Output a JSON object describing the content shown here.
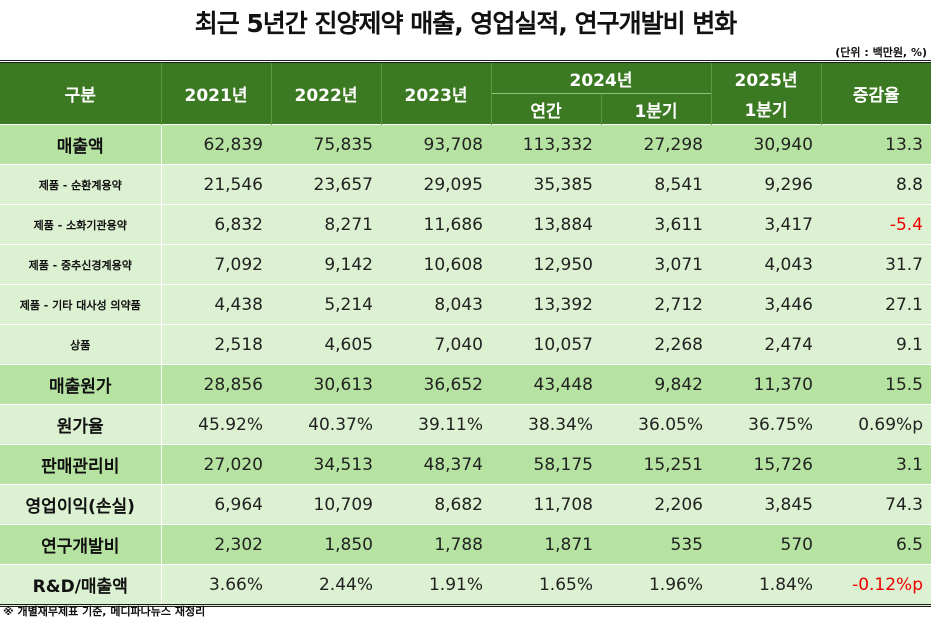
{
  "title": "최근 5년간 진양제약 매출, 영업실적, 연구개발비 변화",
  "unit": "(단위 : 백만원, %)",
  "header": {
    "category": "구분",
    "y2021": "2021년",
    "y2022": "2022년",
    "y2023": "2023년",
    "y2024": "2024년",
    "y2024_annual": "연간",
    "y2024_q1": "1분기",
    "y2025": "2025년",
    "y2025_q1": "1분기",
    "change": "증감율"
  },
  "rows": [
    {
      "label": "매출액",
      "type": "main",
      "values": [
        "62,839",
        "75,835",
        "93,708",
        "113,332",
        "27,298",
        "30,940",
        "13.3"
      ]
    },
    {
      "label": "제품 - 순환계용약",
      "type": "sub",
      "values": [
        "21,546",
        "23,657",
        "29,095",
        "35,385",
        "8,541",
        "9,296",
        "8.8"
      ]
    },
    {
      "label": "제품 - 소화기관용약",
      "type": "sub",
      "values": [
        "6,832",
        "8,271",
        "11,686",
        "13,884",
        "3,611",
        "3,417",
        "-5.4"
      ]
    },
    {
      "label": "제품 - 중추신경계용약",
      "type": "sub",
      "values": [
        "7,092",
        "9,142",
        "10,608",
        "12,950",
        "3,071",
        "4,043",
        "31.7"
      ]
    },
    {
      "label": "제품 - 기타 대사성 의약품",
      "type": "sub",
      "values": [
        "4,438",
        "5,214",
        "8,043",
        "13,392",
        "2,712",
        "3,446",
        "27.1"
      ]
    },
    {
      "label": "상품",
      "type": "sub",
      "values": [
        "2,518",
        "4,605",
        "7,040",
        "10,057",
        "2,268",
        "2,474",
        "9.1"
      ]
    },
    {
      "label": "매출원가",
      "type": "main",
      "values": [
        "28,856",
        "30,613",
        "36,652",
        "43,448",
        "9,842",
        "11,370",
        "15.5"
      ]
    },
    {
      "label": "원가율",
      "type": "light",
      "values": [
        "45.92%",
        "40.37%",
        "39.11%",
        "38.34%",
        "36.05%",
        "36.75%",
        "0.69%p"
      ]
    },
    {
      "label": "판매관리비",
      "type": "main",
      "values": [
        "27,020",
        "34,513",
        "48,374",
        "58,175",
        "15,251",
        "15,726",
        "3.1"
      ]
    },
    {
      "label": "영업이익(손실)",
      "type": "light",
      "values": [
        "6,964",
        "10,709",
        "8,682",
        "11,708",
        "2,206",
        "3,845",
        "74.3"
      ]
    },
    {
      "label": "연구개발비",
      "type": "main",
      "values": [
        "2,302",
        "1,850",
        "1,788",
        "1,871",
        "535",
        "570",
        "6.5"
      ]
    },
    {
      "label": "R&D/매출액",
      "type": "light",
      "values": [
        "3.66%",
        "2.44%",
        "1.91%",
        "1.65%",
        "1.96%",
        "1.84%",
        "-0.12%p"
      ]
    }
  ],
  "colors": {
    "header": "#3b7a22",
    "main_row": "#b6e3a2",
    "sub_row": "#dcf1d2",
    "negative": "#e00000"
  },
  "footnote": "※ 개별재무제표 기준, 메디파나뉴스 재정리"
}
